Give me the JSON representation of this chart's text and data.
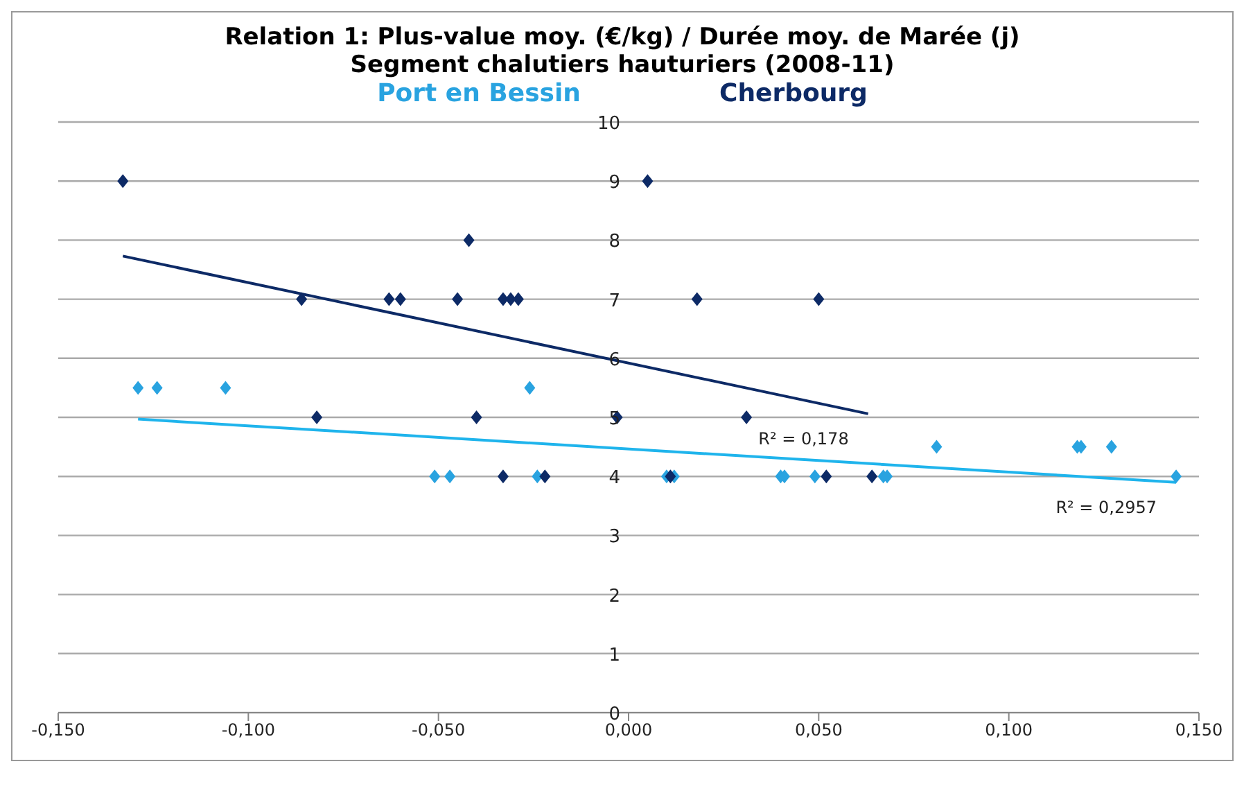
{
  "chart_data": {
    "type": "scatter",
    "title": "Relation 1:  Plus-value moy. (€/kg) / Durée moy. de Marée (j)",
    "subtitle": "Segment chalutiers hauturiers (2008-11)",
    "series": [
      {
        "name": "Port en Bessin",
        "color": "#29a3e0",
        "marker": "diamond",
        "x": [
          -0.129,
          -0.124,
          -0.106,
          -0.026,
          -0.051,
          -0.047,
          -0.024,
          0.01,
          0.012,
          0.04,
          0.041,
          0.049,
          0.067,
          0.068,
          0.144,
          0.081,
          0.118,
          0.119,
          0.127
        ],
        "values": [
          5.5,
          5.5,
          5.5,
          5.5,
          4,
          4,
          4,
          4,
          4,
          4,
          4,
          4,
          4,
          4,
          4,
          4.5,
          4.5,
          4.5,
          4.5
        ]
      },
      {
        "name": "Cherbourg",
        "color": "#0d2a66",
        "marker": "diamond",
        "x": [
          -0.133,
          -0.086,
          -0.063,
          -0.06,
          -0.045,
          -0.033,
          -0.031,
          -0.029,
          -0.042,
          -0.082,
          -0.04,
          -0.033,
          -0.022,
          0.005,
          0.018,
          0.05,
          -0.003,
          0.031,
          0.011,
          0.052,
          0.064
        ],
        "values": [
          9,
          7,
          7,
          7,
          7,
          7,
          7,
          7,
          8,
          5,
          5,
          4,
          4,
          9,
          7,
          7,
          5,
          5,
          4,
          4,
          4
        ]
      },
      {
        "type": "line",
        "color": "#0d2a66",
        "x": [
          -0.133,
          0.063
        ],
        "values": [
          7.73,
          5.06
        ]
      },
      {
        "type": "line",
        "color": "#1fb4ec",
        "x": [
          -0.129,
          0.144
        ],
        "values": [
          4.97,
          3.9
        ]
      }
    ],
    "xlim": [
      -0.15,
      0.15
    ],
    "xticks": [
      {
        "value": -0.15,
        "label": "-0,150"
      },
      {
        "value": -0.1,
        "label": "-0,100"
      },
      {
        "value": -0.05,
        "label": "-0,050"
      },
      {
        "value": 0,
        "label": "0,000"
      },
      {
        "value": 0.05,
        "label": "0,050"
      },
      {
        "value": 0.1,
        "label": "0,100"
      },
      {
        "value": 0.15,
        "label": "0,150"
      }
    ],
    "ylim": [
      0,
      10
    ],
    "yticks": [
      0,
      1,
      2,
      3,
      4,
      5,
      6,
      7,
      8,
      9,
      10
    ],
    "grid": "y",
    "legend": "top",
    "annotations": [
      {
        "text": "R² = 0,178",
        "x": 0.063,
        "y": 5.06
      },
      {
        "text": "R² = 0,2957",
        "x": 0.144,
        "y": 3.9
      }
    ]
  }
}
